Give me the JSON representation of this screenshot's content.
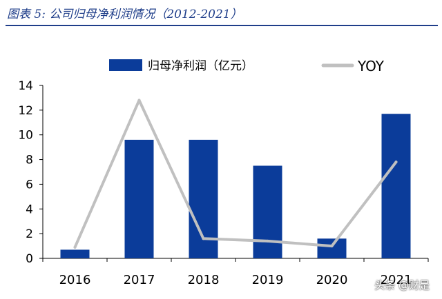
{
  "figure": {
    "title": "图表 5:  公司归母净利润情况（2012-2021）"
  },
  "watermark": "头条 @财是",
  "colors": {
    "bar": "#0b3c9a",
    "line": "#c0c0c0",
    "title": "#1f3e8a"
  },
  "chart_data": {
    "type": "bar",
    "categories": [
      "2016",
      "2017",
      "2018",
      "2019",
      "2020",
      "2021"
    ],
    "series": [
      {
        "name": "归母净利润（亿元）",
        "type": "bar",
        "values": [
          0.7,
          9.6,
          9.6,
          7.5,
          1.6,
          11.7
        ]
      },
      {
        "name": "YOY",
        "type": "line",
        "values": [
          0.9,
          12.8,
          1.6,
          1.4,
          1.0,
          7.8
        ]
      }
    ],
    "yticks": [
      "0",
      "2",
      "4",
      "6",
      "8",
      "10",
      "12",
      "14"
    ],
    "ylim": [
      0,
      14
    ],
    "legend_position": "top",
    "grid": false
  }
}
